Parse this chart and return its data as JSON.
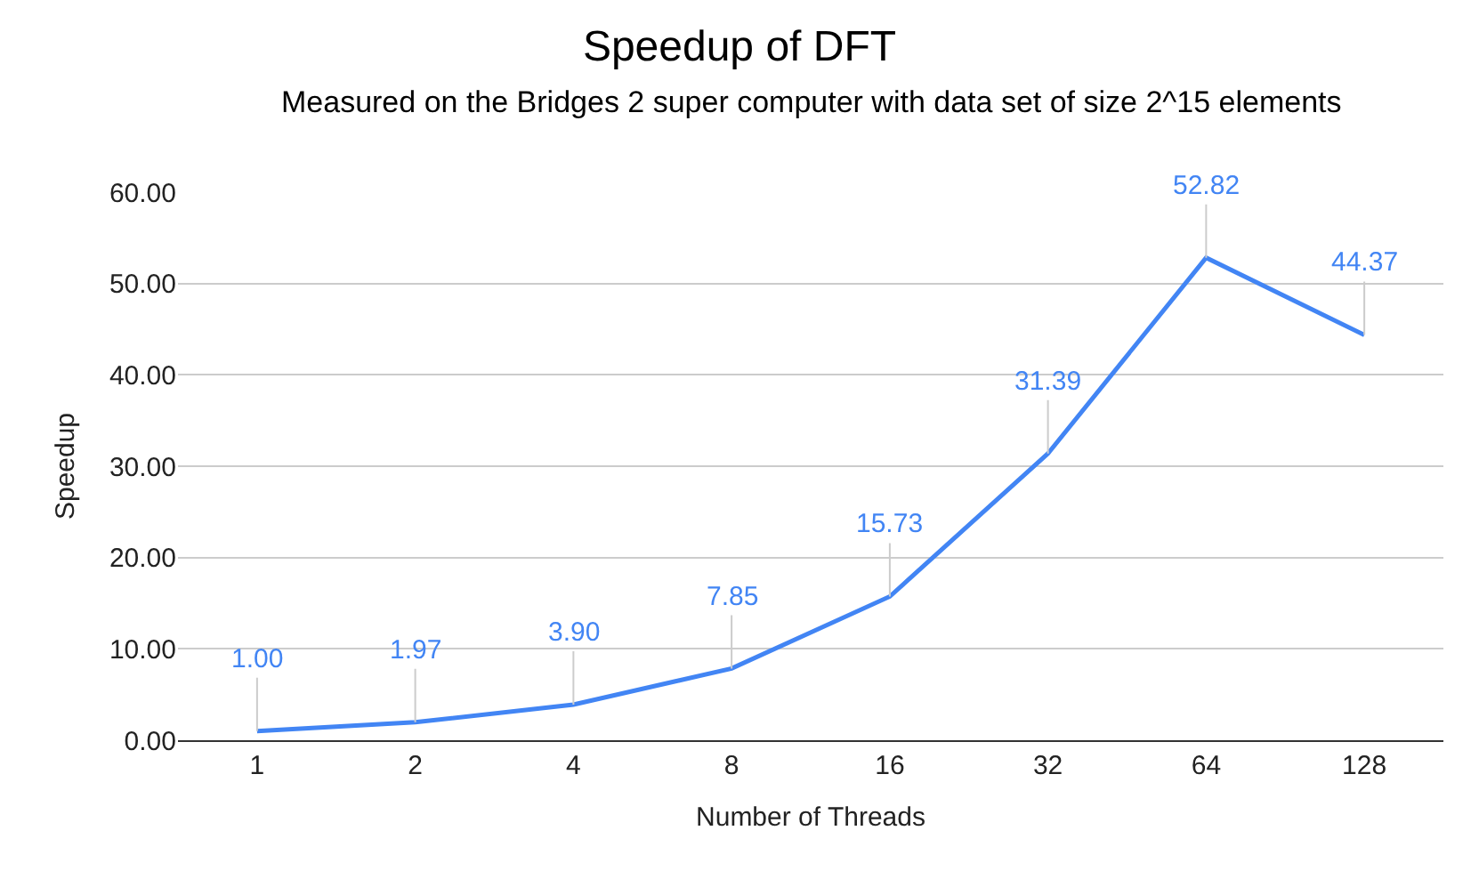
{
  "chart_data": {
    "type": "line",
    "title": "Speedup of DFT",
    "subtitle": "Measured on the Bridges 2 super computer with data set of size 2^15 elements",
    "xlabel": "Number of Threads",
    "ylabel": "Speedup",
    "categories": [
      "1",
      "2",
      "4",
      "8",
      "16",
      "32",
      "64",
      "128"
    ],
    "series": [
      {
        "color": "#4285f4",
        "values": [
          1.0,
          1.97,
          3.9,
          7.85,
          15.73,
          31.39,
          52.82,
          44.37
        ]
      }
    ],
    "value_labels": [
      "1.00",
      "1.97",
      "3.90",
      "7.85",
      "15.73",
      "31.39",
      "52.82",
      "44.37"
    ],
    "ylim": [
      0,
      60
    ],
    "yticks": [
      {
        "value": 0,
        "label": "0.00"
      },
      {
        "value": 10,
        "label": "10.00"
      },
      {
        "value": 20,
        "label": "20.00"
      },
      {
        "value": 30,
        "label": "30.00"
      },
      {
        "value": 40,
        "label": "40.00"
      },
      {
        "value": 50,
        "label": "50.00"
      },
      {
        "value": 60,
        "label": "60.00"
      }
    ],
    "grid": "y",
    "legend": false,
    "marker": "none",
    "line_style": "solid"
  }
}
